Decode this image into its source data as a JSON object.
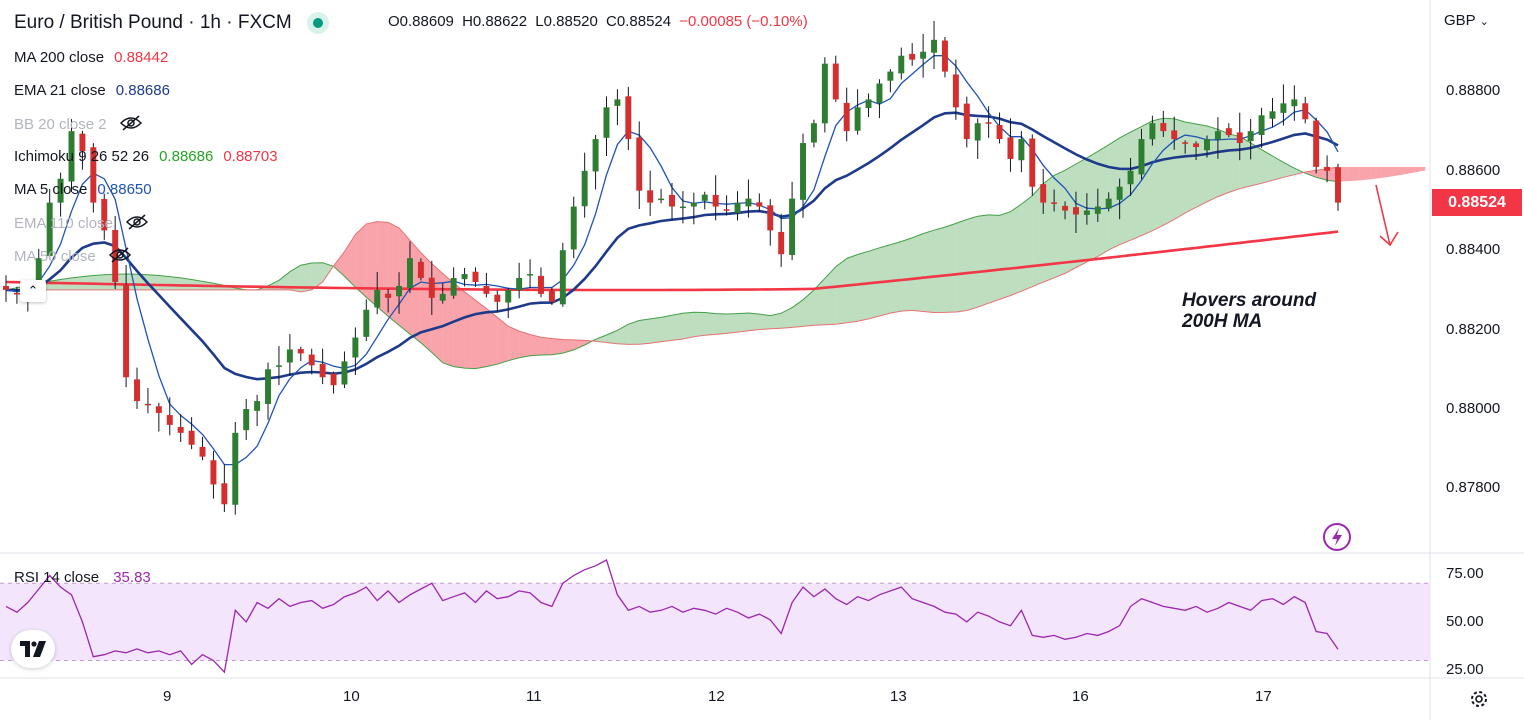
{
  "header": {
    "symbol_title": "Euro / British Pound · 1h · FXCM",
    "status_color": "#089981",
    "open": "O0.88609",
    "high": "H0.88622",
    "low": "L0.88520",
    "close": "C0.88524",
    "change": "−0.00085 (−0.10%)"
  },
  "indicators": [
    {
      "label": "MA 200 close",
      "value": "0.88442",
      "value2": "",
      "color": "#f23645",
      "color2": "",
      "hidden": false
    },
    {
      "label": "EMA 21 close",
      "value": "0.88686",
      "value2": "",
      "color": "#1e3a8a",
      "color2": "",
      "hidden": false
    },
    {
      "label": "BB 20 close 2",
      "value": "",
      "value2": "",
      "color": "",
      "color2": "",
      "hidden": true
    },
    {
      "label": "Ichimoku 9 26 52 26",
      "value": "0.88686",
      "value2": "0.88703",
      "color": "#22a522",
      "color2": "#f23645",
      "hidden": false
    },
    {
      "label": "MA 5 close",
      "value": "0.88650",
      "value2": "",
      "color": "#1e53b8",
      "color2": "",
      "hidden": false
    },
    {
      "label": "EMA 110 close",
      "value": "",
      "value2": "",
      "color": "",
      "color2": "",
      "hidden": true
    },
    {
      "label": "MA 50 close",
      "value": "",
      "value2": "",
      "color": "",
      "color2": "",
      "hidden": true
    }
  ],
  "currency_selector": "GBP",
  "price_tag": "0.88524",
  "annotation": {
    "line1": "Hovers around",
    "line2": "200H MA"
  },
  "rsi_legend": {
    "label": "RSI 14 close",
    "value": "35.83",
    "color": "#9c27b0"
  },
  "icons": {
    "logo": "tradingview-logo-icon",
    "bolt": "lightning-bolt-icon",
    "gear": "gear-icon",
    "eye": "eye-crossed-icon",
    "collapse": "chevron-up-icon"
  },
  "chart_data": [
    {
      "type": "candlestick",
      "title": "Euro / British Pound · 1h · FXCM",
      "y_unit": "GBP",
      "ylim": [
        0.8767,
        0.8898
      ],
      "y_ticks": [
        "0.88800",
        "0.88600",
        "0.88400",
        "0.88200",
        "0.88000",
        "0.87800"
      ],
      "x_ticks": [
        "9",
        "10",
        "11",
        "12",
        "13",
        "16",
        "17"
      ],
      "series_colors": {
        "up": "#2e7d32",
        "down": "#d32f2f"
      },
      "close_path": [
        0.883,
        0.8829,
        0.8831,
        0.8838,
        0.8852,
        0.8858,
        0.887,
        0.8865,
        0.8852,
        0.8845,
        0.8832,
        0.8808,
        0.8802,
        0.8801,
        0.8799,
        0.8796,
        0.8794,
        0.8791,
        0.8788,
        0.8781,
        0.8776,
        0.8794,
        0.88,
        0.8802,
        0.881,
        0.8811,
        0.8815,
        0.8814,
        0.8811,
        0.8808,
        0.8806,
        0.8812,
        0.8818,
        0.8825,
        0.883,
        0.8828,
        0.8831,
        0.8838,
        0.8833,
        0.8828,
        0.8829,
        0.8833,
        0.8834,
        0.8832,
        0.8829,
        0.8827,
        0.883,
        0.8833,
        0.8834,
        0.8829,
        0.8827,
        0.884,
        0.8851,
        0.886,
        0.8868,
        0.8876,
        0.8878,
        0.8868,
        0.8855,
        0.8852,
        0.8853,
        0.8851,
        0.8851,
        0.8852,
        0.8854,
        0.8851,
        0.885,
        0.8852,
        0.8853,
        0.8851,
        0.8845,
        0.8839,
        0.8853,
        0.8867,
        0.8872,
        0.8887,
        0.8878,
        0.887,
        0.8876,
        0.8878,
        0.8882,
        0.8885,
        0.8889,
        0.8888,
        0.889,
        0.8893,
        0.8885,
        0.8876,
        0.8868,
        0.8872,
        0.8872,
        0.8868,
        0.8863,
        0.8868,
        0.8856,
        0.8852,
        0.8852,
        0.885,
        0.8849,
        0.885,
        0.8851,
        0.8853,
        0.8856,
        0.886,
        0.8868,
        0.8872,
        0.887,
        0.8868,
        0.8867,
        0.8866,
        0.8868,
        0.887,
        0.8869,
        0.8867,
        0.887,
        0.8874,
        0.8875,
        0.8877,
        0.8878,
        0.8873,
        0.8861,
        0.886,
        0.8852
      ]
    },
    {
      "type": "line",
      "title": "RSI 14 close",
      "ylim": [
        22,
        82
      ],
      "y_ticks": [
        "75.00",
        "50.00",
        "25.00"
      ],
      "band": [
        30,
        70
      ],
      "series": [
        {
          "name": "RSI 14 close",
          "color": "#9c27b0",
          "values": [
            58,
            55,
            60,
            67,
            74,
            68,
            64,
            50,
            32,
            33,
            35,
            34,
            36,
            34,
            35,
            33,
            35,
            28,
            33,
            30,
            24,
            56,
            50,
            60,
            57,
            62,
            58,
            60,
            61,
            57,
            59,
            63,
            65,
            68,
            61,
            66,
            60,
            64,
            67,
            70,
            61,
            63,
            65,
            60,
            66,
            62,
            63,
            66,
            65,
            60,
            58,
            70,
            74,
            77,
            79,
            82,
            64,
            56,
            58,
            55,
            56,
            58,
            55,
            57,
            56,
            54,
            57,
            55,
            52,
            54,
            51,
            44,
            60,
            68,
            63,
            67,
            62,
            59,
            63,
            61,
            64,
            66,
            68,
            62,
            60,
            58,
            55,
            54,
            50,
            55,
            53,
            50,
            48,
            56,
            43,
            42,
            43,
            41,
            42,
            44,
            43,
            45,
            48,
            58,
            62,
            60,
            58,
            57,
            56,
            58,
            55,
            57,
            60,
            58,
            56,
            61,
            62,
            59,
            63,
            60,
            45,
            44,
            35.83
          ]
        }
      ]
    }
  ]
}
